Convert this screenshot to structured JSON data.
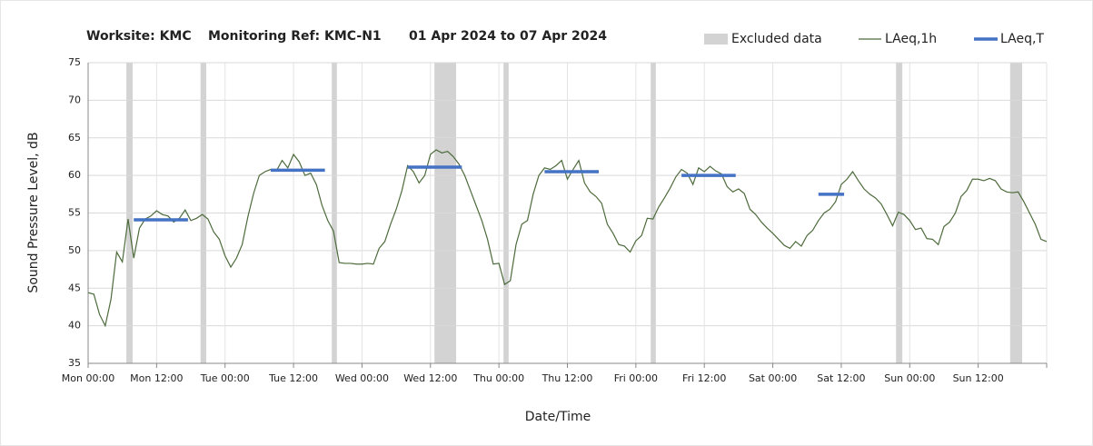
{
  "chart_data": {
    "type": "line",
    "title": [
      "Worksite: KMC",
      "Monitoring Ref: KMC-N1",
      "01 Apr 2024 to 07 Apr 2024"
    ],
    "xlabel": "Date/Time",
    "ylabel": "Sound Pressure Level, dB",
    "xlim": [
      0,
      168
    ],
    "ylim": [
      35,
      75
    ],
    "xticks": [
      {
        "value": 0,
        "label": "Mon 00:00"
      },
      {
        "value": 12,
        "label": "Mon 12:00"
      },
      {
        "value": 24,
        "label": "Tue 00:00"
      },
      {
        "value": 36,
        "label": "Tue 12:00"
      },
      {
        "value": 48,
        "label": "Wed 00:00"
      },
      {
        "value": 60,
        "label": "Wed 12:00"
      },
      {
        "value": 72,
        "label": "Thu 00:00"
      },
      {
        "value": 84,
        "label": "Thu 12:00"
      },
      {
        "value": 96,
        "label": "Fri 00:00"
      },
      {
        "value": 108,
        "label": "Fri 12:00"
      },
      {
        "value": 120,
        "label": "Sat 00:00"
      },
      {
        "value": 132,
        "label": "Sat 12:00"
      },
      {
        "value": 144,
        "label": "Sun 00:00"
      },
      {
        "value": 156,
        "label": "Sun 12:00"
      },
      {
        "value": 168,
        "label": ""
      }
    ],
    "yticks": [
      35,
      40,
      45,
      50,
      55,
      60,
      65,
      70,
      75
    ],
    "grid": true,
    "legend": "top right",
    "series": [
      {
        "name": "Excluded data",
        "color": "#d3d3d3",
        "ranges": [
          [
            6.7,
            7.8
          ],
          [
            19.7,
            20.7
          ],
          [
            42.7,
            43.6
          ],
          [
            60.7,
            64.5
          ],
          [
            72.8,
            73.7
          ],
          [
            98.6,
            99.5
          ],
          [
            141.6,
            142.7
          ],
          [
            161.6,
            163.7
          ]
        ]
      },
      {
        "name": "LAeq,1h",
        "color": "#4d6b3c",
        "x": [
          0,
          1,
          2,
          3,
          4,
          5,
          6,
          7,
          8,
          9,
          10,
          11,
          12,
          13,
          14,
          15,
          16,
          17,
          18,
          19,
          20,
          21,
          22,
          23,
          24,
          25,
          26,
          27,
          28,
          29,
          30,
          31,
          32,
          33,
          34,
          35,
          36,
          37,
          38,
          39,
          40,
          41,
          42,
          43,
          44,
          45,
          46,
          47,
          48,
          49,
          50,
          51,
          52,
          53,
          54,
          55,
          56,
          57,
          58,
          59,
          60,
          61,
          62,
          63,
          64,
          65,
          66,
          67,
          68,
          69,
          70,
          71,
          72,
          73,
          74,
          75,
          76,
          77,
          78,
          79,
          80,
          81,
          82,
          83,
          84,
          85,
          86,
          87,
          88,
          89,
          90,
          91,
          92,
          93,
          94,
          95,
          96,
          97,
          98,
          99,
          100,
          101,
          102,
          103,
          104,
          105,
          106,
          107,
          108,
          109,
          110,
          111,
          112,
          113,
          114,
          115,
          116,
          117,
          118,
          119,
          120,
          121,
          122,
          123,
          124,
          125,
          126,
          127,
          128,
          129,
          130,
          131,
          132,
          133,
          134,
          135,
          136,
          137,
          138,
          139,
          140,
          141,
          142,
          143,
          144,
          145,
          146,
          147,
          148,
          149,
          150,
          151,
          152,
          153,
          154,
          155,
          156,
          157,
          158,
          159,
          160,
          161,
          162,
          163,
          164,
          165,
          166,
          167,
          168
        ],
        "values": [
          44.4,
          44.2,
          41.5,
          40.0,
          43.5,
          49.8,
          48.5,
          54.2,
          49.0,
          53.0,
          54.2,
          54.6,
          55.3,
          54.8,
          54.6,
          53.8,
          54.3,
          55.4,
          54.0,
          54.3,
          54.8,
          54.2,
          52.5,
          51.5,
          49.3,
          47.8,
          49.0,
          50.8,
          54.5,
          57.6,
          60.0,
          60.5,
          60.8,
          60.6,
          62.0,
          61.0,
          62.8,
          61.8,
          60.0,
          60.3,
          58.8,
          56.0,
          54.0,
          52.6,
          48.4,
          48.3,
          48.3,
          48.2,
          48.2,
          48.3,
          48.2,
          50.3,
          51.2,
          53.5,
          55.5,
          58.0,
          61.3,
          60.5,
          59.0,
          60.0,
          62.8,
          63.4,
          63.0,
          63.2,
          62.5,
          61.5,
          60.0,
          58.0,
          56.0,
          54.0,
          51.5,
          48.2,
          48.3,
          45.5,
          46.0,
          50.8,
          53.5,
          54.0,
          57.5,
          60.0,
          61.0,
          60.8,
          61.3,
          62.0,
          59.5,
          60.8,
          62.0,
          59.0,
          57.8,
          57.2,
          56.3,
          53.5,
          52.3,
          50.8,
          50.6,
          49.8,
          51.3,
          52.0,
          54.3,
          54.2,
          55.8,
          57.0,
          58.3,
          59.8,
          60.8,
          60.3,
          58.8,
          61.0,
          60.5,
          61.2,
          60.6,
          60.2,
          58.5,
          57.8,
          58.2,
          57.6,
          55.5,
          54.8,
          53.8,
          53.0,
          52.3,
          51.5,
          50.7,
          50.3,
          51.2,
          50.6,
          52.0,
          52.7,
          54.0,
          55.0,
          55.5,
          56.5,
          58.8,
          59.5,
          60.5,
          59.3,
          58.2,
          57.5,
          57.0,
          56.2,
          54.8,
          53.3,
          55.1,
          54.8,
          54.0,
          52.8,
          53.0,
          51.6,
          51.5,
          50.8,
          53.2,
          53.8,
          55.0,
          57.2,
          58.0,
          59.5,
          59.5,
          59.3,
          59.6,
          59.3,
          58.2,
          57.8,
          57.7,
          57.8,
          56.5,
          55.0,
          53.5,
          51.5,
          51.2
        ]
      },
      {
        "name": "LAeq,T",
        "color": "#4472c4",
        "segments": [
          {
            "start": 8,
            "end": 17.5,
            "value": 54.1
          },
          {
            "start": 32,
            "end": 41.5,
            "value": 60.7
          },
          {
            "start": 56,
            "end": 65.5,
            "value": 61.1
          },
          {
            "start": 80,
            "end": 89.5,
            "value": 60.5
          },
          {
            "start": 104,
            "end": 113.5,
            "value": 60.0
          },
          {
            "start": 128,
            "end": 132.5,
            "value": 57.5
          }
        ]
      }
    ]
  }
}
